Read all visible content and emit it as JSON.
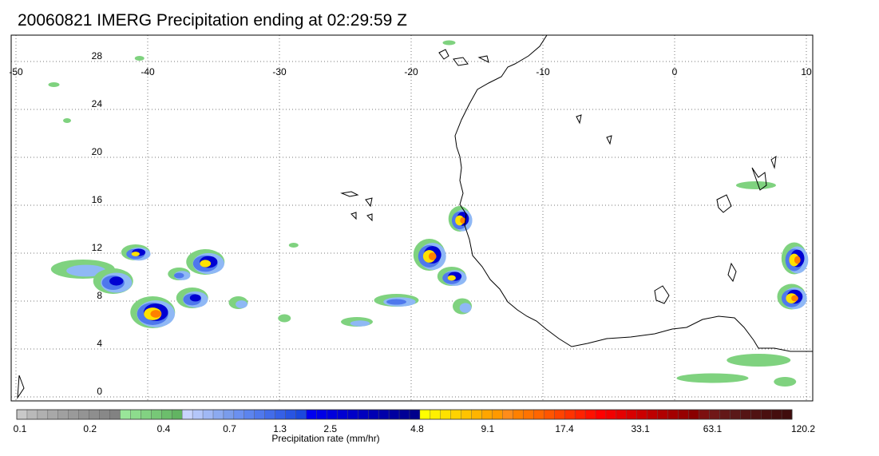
{
  "title": "20060821 IMERG Precipitation ending at 02:29:59 Z",
  "map": {
    "lon_ticks": [
      "-50",
      "-40",
      "-30",
      "-20",
      "-10",
      "0",
      "10"
    ],
    "lat_ticks": [
      "28",
      "24",
      "20",
      "16",
      "12",
      "8",
      "4",
      "0"
    ],
    "lon_range": [
      -50,
      10
    ],
    "lat_range": [
      -0.5,
      30
    ],
    "grid": "dotted",
    "coastline_color": "#000000"
  },
  "colorbar": {
    "label": "Precipitation rate (mm/hr)",
    "tick_labels": [
      "0.1",
      "0.2",
      "0.4",
      "0.7",
      "1.3",
      "2.5",
      "4.8",
      "9.1",
      "17.4",
      "33.1",
      "63.1",
      "120.2"
    ],
    "colors": [
      "#c8c8c8",
      "#b9b9b9",
      "#b0b0b0",
      "#a8a8a8",
      "#a0a0a0",
      "#9a9a9a",
      "#949494",
      "#8e8e8e",
      "#888888",
      "#828282",
      "#99e699",
      "#8ddc8d",
      "#82d282",
      "#77c877",
      "#6cbe6c",
      "#62b462",
      "#c8d4ff",
      "#b4c6fa",
      "#a0b8f5",
      "#8caaf0",
      "#7a9ceb",
      "#6b90f0",
      "#5c84ee",
      "#4f78ec",
      "#426ce9",
      "#3560e6",
      "#2854e2",
      "#1b48de",
      "#0000f0",
      "#0000e6",
      "#0000dc",
      "#0000d2",
      "#0000c8",
      "#0000be",
      "#0000b4",
      "#0000aa",
      "#0000a0",
      "#000096",
      "#00008c",
      "#ffff00",
      "#fff000",
      "#ffe100",
      "#ffd200",
      "#ffc300",
      "#ffb400",
      "#ffa500",
      "#ff9900",
      "#ff8c1a",
      "#ff8000",
      "#ff7300",
      "#ff6600",
      "#ff5500",
      "#ff4400",
      "#ff3300",
      "#ff2200",
      "#ff1100",
      "#ff0000",
      "#f20000",
      "#e50000",
      "#d80000",
      "#cb0000",
      "#be0000",
      "#b10000",
      "#a40000",
      "#970000",
      "#8a0000",
      "#7d1010",
      "#701818",
      "#631818",
      "#5a1818",
      "#551515",
      "#501212",
      "#4a1010",
      "#450e0e",
      "#400c0c"
    ]
  },
  "precip_cells": [
    {
      "lon": -44.8,
      "lat": 10.6,
      "rx": 40,
      "ry": 12,
      "intensity": 0.25
    },
    {
      "lon": -42.5,
      "lat": 9.6,
      "rx": 25,
      "ry": 16,
      "intensity": 0.5
    },
    {
      "lon": -40.8,
      "lat": 12.0,
      "rx": 18,
      "ry": 10,
      "intensity": 0.65
    },
    {
      "lon": -39.5,
      "lat": 7.0,
      "rx": 28,
      "ry": 20,
      "intensity": 0.75
    },
    {
      "lon": -36.5,
      "lat": 8.2,
      "rx": 20,
      "ry": 13,
      "intensity": 0.55
    },
    {
      "lon": -35.5,
      "lat": 11.2,
      "rx": 24,
      "ry": 16,
      "intensity": 0.6
    },
    {
      "lon": -37.5,
      "lat": 10.2,
      "rx": 14,
      "ry": 8,
      "intensity": 0.35
    },
    {
      "lon": -33.0,
      "lat": 7.8,
      "rx": 12,
      "ry": 8,
      "intensity": 0.2
    },
    {
      "lon": -29.5,
      "lat": 6.5,
      "rx": 8,
      "ry": 5,
      "intensity": 0.1
    },
    {
      "lon": -24.0,
      "lat": 6.2,
      "rx": 20,
      "ry": 6,
      "intensity": 0.25
    },
    {
      "lon": -21.0,
      "lat": 8.0,
      "rx": 28,
      "ry": 8,
      "intensity": 0.35
    },
    {
      "lon": -18.5,
      "lat": 11.8,
      "rx": 20,
      "ry": 20,
      "intensity": 0.8
    },
    {
      "lon": -16.8,
      "lat": 10.0,
      "rx": 18,
      "ry": 12,
      "intensity": 0.6
    },
    {
      "lon": -16.2,
      "lat": 14.8,
      "rx": 14,
      "ry": 16,
      "intensity": 0.7
    },
    {
      "lon": -16.0,
      "lat": 7.5,
      "rx": 12,
      "ry": 10,
      "intensity": 0.2
    },
    {
      "lon": 9.2,
      "lat": 11.5,
      "rx": 16,
      "ry": 20,
      "intensity": 0.7
    },
    {
      "lon": 9.0,
      "lat": 8.3,
      "rx": 18,
      "ry": 16,
      "intensity": 0.7
    },
    {
      "lon": 6.3,
      "lat": 17.6,
      "rx": 25,
      "ry": 5,
      "intensity": 0.12
    },
    {
      "lon": 6.5,
      "lat": 3.0,
      "rx": 40,
      "ry": 8,
      "intensity": 0.12
    },
    {
      "lon": 3.0,
      "lat": 1.5,
      "rx": 45,
      "ry": 6,
      "intensity": 0.1
    },
    {
      "lon": 8.5,
      "lat": 1.2,
      "rx": 14,
      "ry": 6,
      "intensity": 0.15
    },
    {
      "lon": -28.8,
      "lat": 12.6,
      "rx": 6,
      "ry": 3,
      "intensity": 0.1
    },
    {
      "lon": -47.0,
      "lat": 26.0,
      "rx": 7,
      "ry": 3,
      "intensity": 0.1
    },
    {
      "lon": -46.0,
      "lat": 23.0,
      "rx": 5,
      "ry": 3,
      "intensity": 0.08
    },
    {
      "lon": -40.5,
      "lat": 28.2,
      "rx": 6,
      "ry": 3,
      "intensity": 0.08
    },
    {
      "lon": -17.0,
      "lat": 29.5,
      "rx": 8,
      "ry": 3,
      "intensity": 0.08
    }
  ]
}
